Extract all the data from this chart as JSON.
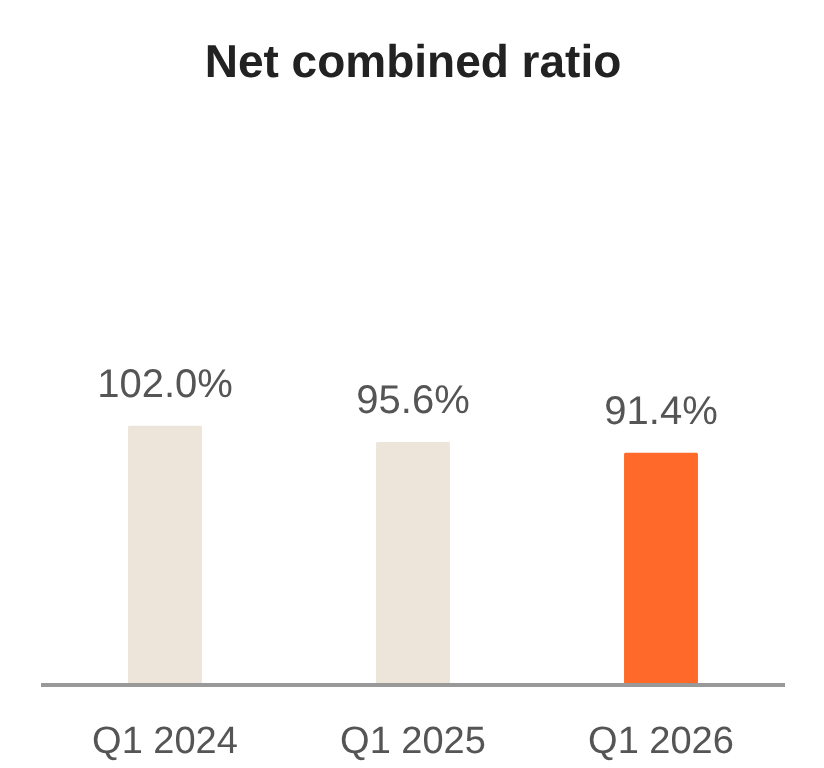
{
  "chart_data": {
    "type": "bar",
    "title": "Net combined ratio",
    "categories": [
      "Q1 2024",
      "Q1 2025",
      "Q1 2026"
    ],
    "values": [
      102.0,
      95.6,
      91.4
    ],
    "colors": [
      "#ede5d9",
      "#ede5d9",
      "#ff6a2b"
    ],
    "value_labels": [
      "102.0%",
      "95.6%",
      "91.4%"
    ],
    "grid": false
  }
}
